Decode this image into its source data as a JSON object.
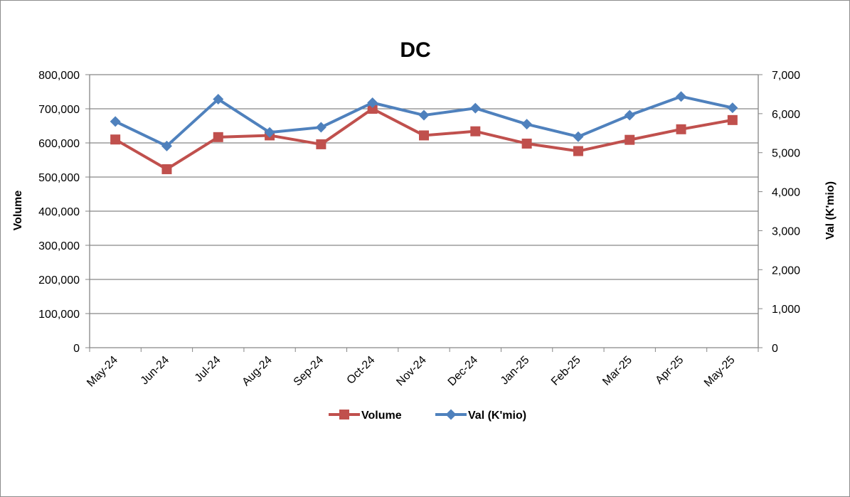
{
  "chart_data": {
    "type": "line",
    "title": "DC",
    "categories": [
      "May-24",
      "Jun-24",
      "Jul-24",
      "Aug-24",
      "Sep-24",
      "Oct-24",
      "Nov-24",
      "Dec-24",
      "Jan-25",
      "Feb-25",
      "Mar-25",
      "Apr-25",
      "May-25"
    ],
    "series": [
      {
        "name": "Volume",
        "axis": "left",
        "color": "#c0504d",
        "marker": "square",
        "values": [
          610000,
          523000,
          617000,
          622000,
          596000,
          700000,
          622000,
          634000,
          598000,
          576000,
          609000,
          640000,
          667000
        ]
      },
      {
        "name": "Val (K'mio)",
        "axis": "right",
        "color": "#4f81bd",
        "marker": "diamond",
        "values": [
          5800,
          5170,
          6370,
          5520,
          5650,
          6280,
          5960,
          6140,
          5730,
          5410,
          5960,
          6440,
          6150
        ]
      }
    ],
    "ylabel": "Volume",
    "y2label": "Val (K'mio)",
    "ylim": [
      0,
      800000
    ],
    "y2lim": [
      0,
      7000
    ],
    "yticks": [
      "0",
      "100,000",
      "200,000",
      "300,000",
      "400,000",
      "500,000",
      "600,000",
      "700,000",
      "800,000"
    ],
    "y2ticks": [
      "0",
      "1,000",
      "2,000",
      "3,000",
      "4,000",
      "5,000",
      "6,000",
      "7,000"
    ],
    "grid": true,
    "legend_position": "bottom"
  }
}
